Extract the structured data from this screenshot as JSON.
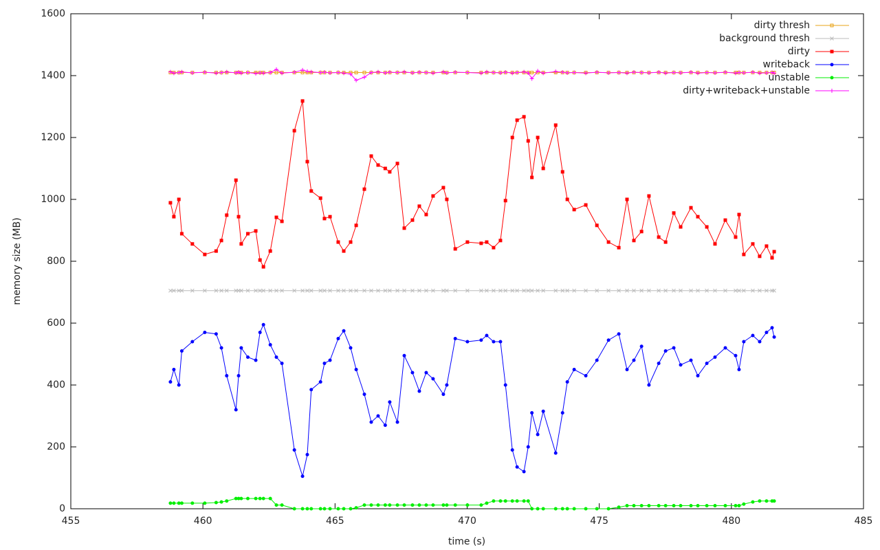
{
  "chart_data": {
    "type": "line",
    "xlabel": "time (s)",
    "ylabel": "memory size (MB)",
    "xlim": [
      455,
      485
    ],
    "xticks": [
      455,
      460,
      465,
      470,
      475,
      480,
      485
    ],
    "ylim": [
      0,
      1600
    ],
    "yticks": [
      0,
      200,
      400,
      600,
      800,
      1000,
      1200,
      1400,
      1600
    ],
    "legend": "top-right",
    "x": [
      458.77,
      458.9,
      459.09,
      459.2,
      459.6,
      460.07,
      460.5,
      460.7,
      460.9,
      461.25,
      461.35,
      461.45,
      461.7,
      462.0,
      462.16,
      462.29,
      462.55,
      462.78,
      462.99,
      463.46,
      463.77,
      463.95,
      464.1,
      464.45,
      464.6,
      464.81,
      465.12,
      465.33,
      465.59,
      465.8,
      466.11,
      466.37,
      466.63,
      466.9,
      467.07,
      467.36,
      467.62,
      467.93,
      468.19,
      468.45,
      468.71,
      469.1,
      469.23,
      469.55,
      470.01,
      470.53,
      470.74,
      471.0,
      471.26,
      471.45,
      471.71,
      471.89,
      472.15,
      472.31,
      472.45,
      472.67,
      472.88,
      473.35,
      473.61,
      473.79,
      474.05,
      474.49,
      474.91,
      475.35,
      475.74,
      476.05,
      476.31,
      476.6,
      476.88,
      477.25,
      477.51,
      477.82,
      478.08,
      478.47,
      478.73,
      479.07,
      479.38,
      479.77,
      480.16,
      480.29,
      480.47,
      480.81,
      481.07,
      481.33,
      481.54,
      481.62
    ],
    "series": [
      {
        "name": "dirty thresh",
        "color": "#e8a317",
        "marker": "square-small",
        "values": [
          1410,
          1410,
          1410,
          1410,
          1410,
          1410,
          1410,
          1410,
          1410,
          1410,
          1410,
          1410,
          1410,
          1410,
          1410,
          1410,
          1410,
          1410,
          1410,
          1410,
          1410,
          1410,
          1410,
          1410,
          1410,
          1410,
          1410,
          1410,
          1410,
          1410,
          1410,
          1410,
          1410,
          1410,
          1410,
          1410,
          1410,
          1410,
          1410,
          1410,
          1410,
          1410,
          1410,
          1410,
          1410,
          1410,
          1410,
          1410,
          1410,
          1410,
          1410,
          1410,
          1410,
          1410,
          1410,
          1410,
          1410,
          1410,
          1410,
          1410,
          1410,
          1410,
          1410,
          1410,
          1410,
          1410,
          1410,
          1410,
          1410,
          1410,
          1410,
          1410,
          1410,
          1410,
          1410,
          1410,
          1410,
          1410,
          1410,
          1410,
          1410,
          1410,
          1410,
          1410,
          1410,
          1410
        ]
      },
      {
        "name": "background thresh",
        "color": "#bbbbbb",
        "marker": "cross",
        "values": [
          705,
          705,
          705,
          705,
          705,
          705,
          705,
          705,
          705,
          705,
          705,
          705,
          705,
          705,
          705,
          705,
          705,
          705,
          705,
          705,
          705,
          705,
          705,
          705,
          705,
          705,
          705,
          705,
          705,
          705,
          705,
          705,
          705,
          705,
          705,
          705,
          705,
          705,
          705,
          705,
          705,
          705,
          705,
          705,
          705,
          705,
          705,
          705,
          705,
          705,
          705,
          705,
          705,
          705,
          705,
          705,
          705,
          705,
          705,
          705,
          705,
          705,
          705,
          705,
          705,
          705,
          705,
          705,
          705,
          705,
          705,
          705,
          705,
          705,
          705,
          705,
          705,
          705,
          705,
          705,
          705,
          705,
          705,
          705,
          705,
          705
        ]
      },
      {
        "name": "dirty",
        "color": "#ff0000",
        "marker": "square",
        "values": [
          989,
          944,
          1000,
          889,
          856,
          822,
          833,
          867,
          949,
          1062,
          944,
          856,
          889,
          898,
          804,
          782,
          833,
          942,
          929,
          1222,
          1318,
          1122,
          1027,
          1004,
          938,
          944,
          862,
          833,
          862,
          916,
          1033,
          1140,
          1111,
          1100,
          1089,
          1116,
          907,
          933,
          978,
          951,
          1011,
          1038,
          1000,
          840,
          862,
          858,
          862,
          844,
          867,
          996,
          1200,
          1256,
          1267,
          1189,
          1071,
          1200,
          1100,
          1240,
          1089,
          1000,
          967,
          982,
          916,
          862,
          844,
          1000,
          867,
          896,
          1011,
          878,
          862,
          956,
          911,
          973,
          944,
          911,
          856,
          933,
          878,
          951,
          822,
          856,
          816,
          849,
          811,
          831
        ]
      },
      {
        "name": "writeback",
        "color": "#0000ff",
        "marker": "circle",
        "values": [
          410,
          450,
          400,
          510,
          540,
          570,
          565,
          520,
          430,
          320,
          430,
          520,
          490,
          480,
          570,
          595,
          530,
          490,
          470,
          190,
          105,
          175,
          385,
          410,
          470,
          480,
          550,
          575,
          520,
          450,
          370,
          280,
          300,
          270,
          345,
          280,
          495,
          440,
          380,
          440,
          420,
          370,
          400,
          550,
          540,
          545,
          560,
          540,
          540,
          400,
          190,
          135,
          120,
          200,
          310,
          240,
          315,
          180,
          310,
          410,
          450,
          430,
          480,
          545,
          565,
          450,
          480,
          525,
          400,
          470,
          510,
          520,
          465,
          480,
          430,
          470,
          490,
          520,
          495,
          450,
          540,
          560,
          540,
          570,
          585,
          555
        ]
      },
      {
        "name": "unstable",
        "color": "#00ee00",
        "marker": "circle",
        "values": [
          18,
          18,
          18,
          18,
          18,
          18,
          20,
          22,
          25,
          33,
          33,
          33,
          33,
          33,
          33,
          33,
          33,
          12,
          12,
          0,
          0,
          0,
          0,
          0,
          0,
          0,
          0,
          0,
          0,
          3,
          12,
          12,
          12,
          12,
          12,
          12,
          12,
          12,
          12,
          12,
          12,
          12,
          12,
          12,
          12,
          12,
          18,
          25,
          25,
          25,
          25,
          25,
          25,
          25,
          0,
          0,
          0,
          0,
          0,
          0,
          0,
          0,
          0,
          0,
          5,
          10,
          10,
          10,
          10,
          10,
          10,
          10,
          10,
          10,
          10,
          10,
          10,
          10,
          10,
          10,
          15,
          22,
          25,
          25,
          25,
          25
        ]
      },
      {
        "name": "dirty+writeback+unstable",
        "color": "#ff00ff",
        "marker": "plus",
        "values": [
          1412,
          1408,
          1410,
          1412,
          1409,
          1411,
          1408,
          1410,
          1412,
          1409,
          1411,
          1408,
          1410,
          1407,
          1409,
          1408,
          1410,
          1420,
          1408,
          1411,
          1418,
          1414,
          1412,
          1410,
          1411,
          1409,
          1410,
          1408,
          1405,
          1385,
          1395,
          1410,
          1412,
          1409,
          1411,
          1410,
          1412,
          1409,
          1411,
          1410,
          1408,
          1412,
          1409,
          1411,
          1410,
          1408,
          1412,
          1410,
          1409,
          1411,
          1408,
          1410,
          1412,
          1409,
          1390,
          1415,
          1408,
          1413,
          1411,
          1409,
          1410,
          1408,
          1411,
          1409,
          1410,
          1408,
          1411,
          1410,
          1409,
          1411,
          1408,
          1410,
          1409,
          1411,
          1408,
          1410,
          1409,
          1411,
          1408,
          1410,
          1409,
          1411,
          1408,
          1409,
          1410,
          1408
        ]
      }
    ]
  }
}
